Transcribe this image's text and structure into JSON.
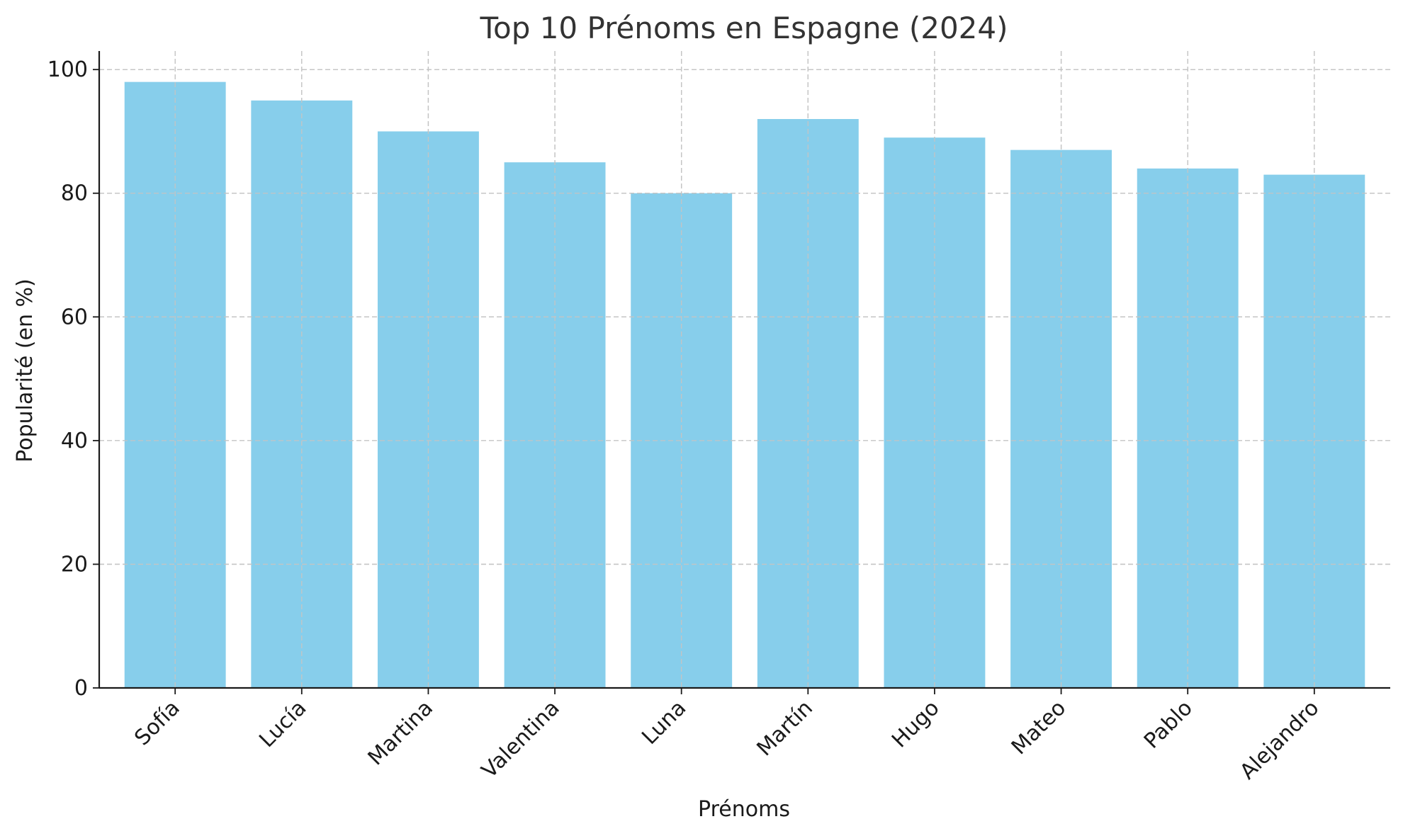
{
  "chart_data": {
    "type": "bar",
    "title": "Top 10 Prénoms en Espagne (2024)",
    "xlabel": "Prénoms",
    "ylabel": "Popularité (en %)",
    "categories": [
      "Sofía",
      "Lucía",
      "Martina",
      "Valentina",
      "Luna",
      "Martín",
      "Hugo",
      "Mateo",
      "Pablo",
      "Alejandro"
    ],
    "values": [
      98,
      95,
      90,
      85,
      80,
      92,
      89,
      87,
      84,
      83
    ],
    "ylim": [
      0,
      103
    ],
    "yticks": [
      0,
      20,
      40,
      60,
      80,
      100
    ],
    "grid": true,
    "bar_color": "#87ceeb",
    "legend": "none"
  }
}
